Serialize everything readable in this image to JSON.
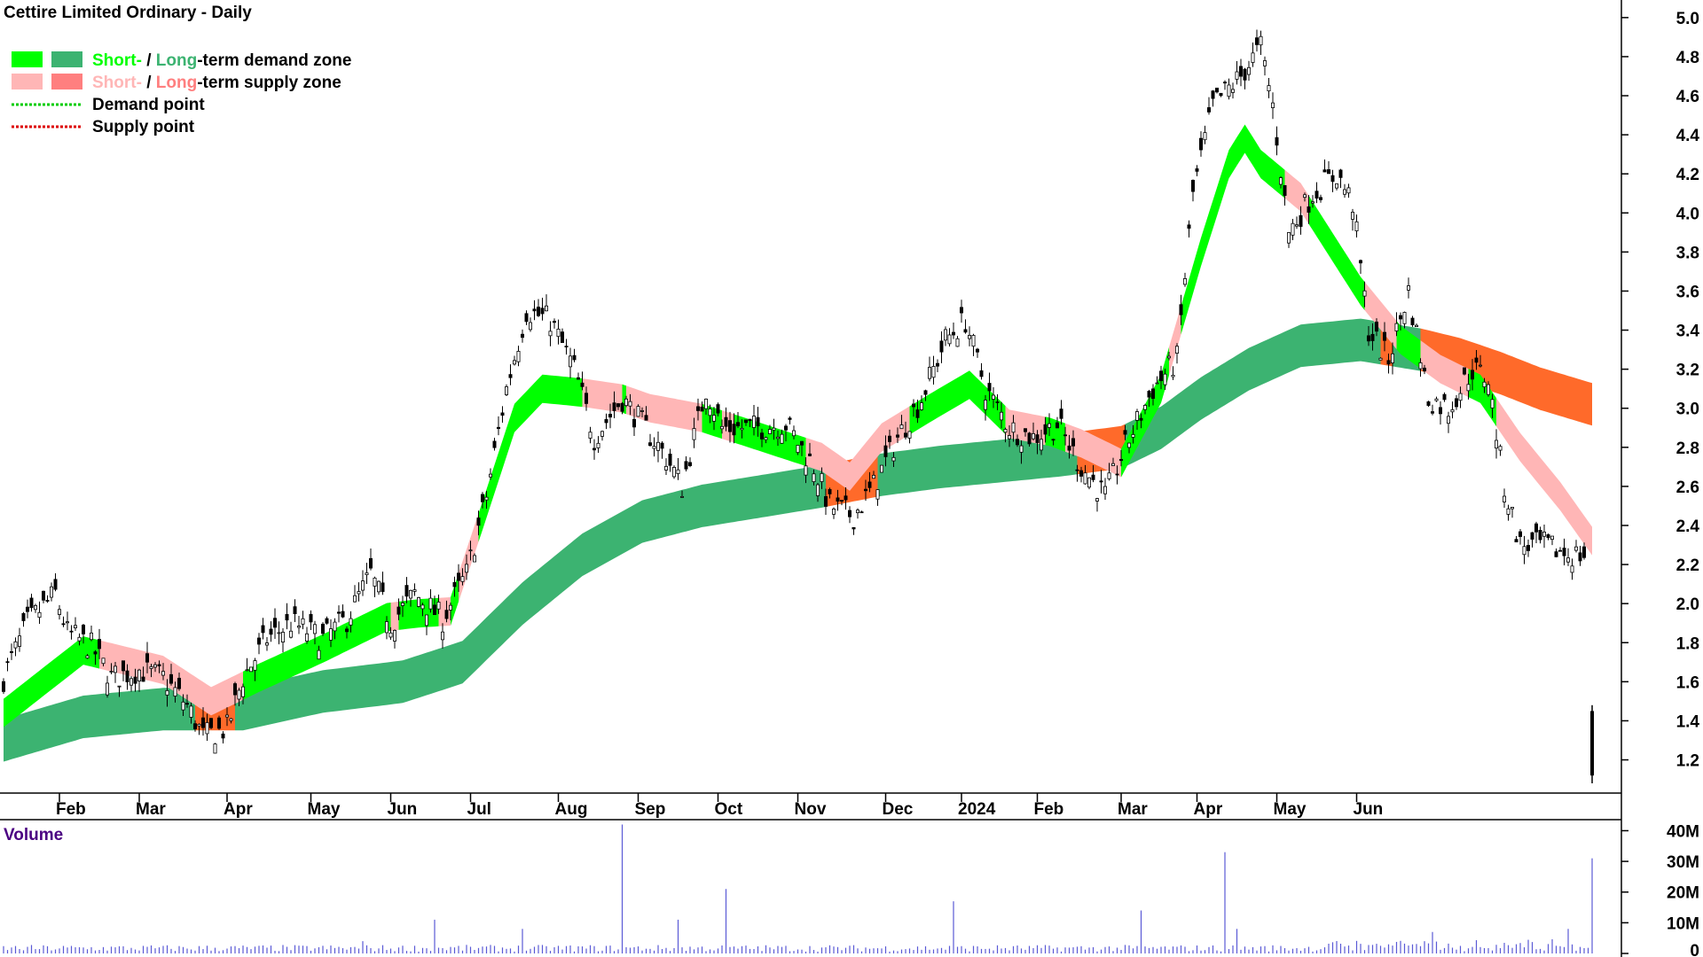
{
  "chart_data": [
    {
      "type": "candlestick",
      "title": "Cettire Limited Ordinary - Daily",
      "y_axis": {
        "ticks": [
          1.2,
          1.4,
          1.6,
          1.8,
          2.0,
          2.2,
          2.4,
          2.6,
          2.8,
          3.0,
          3.2,
          3.4,
          3.6,
          3.8,
          4.0,
          4.2,
          4.4,
          4.6,
          4.8,
          5.0
        ],
        "range": [
          1.03,
          5.09
        ],
        "position": "right"
      },
      "x_axis": {
        "labels": [
          "Feb",
          "Mar",
          "Apr",
          "May",
          "Jun",
          "Jul",
          "Aug",
          "Sep",
          "Oct",
          "Nov",
          "Dec",
          "2024",
          "Feb",
          "Mar",
          "Apr",
          "May",
          "Jun"
        ]
      },
      "legend": {
        "placement": "top-left",
        "items": [
          {
            "swatches": [
              "#00ff00",
              "#3cb371"
            ],
            "parts": [
              {
                "text": "Short-",
                "color": "#00ff00"
              },
              {
                "text": " / ",
                "color": "#000000"
              },
              {
                "text": "Long",
                "color": "#3cb371"
              },
              {
                "text": "-term demand zone",
                "color": "#000000"
              }
            ]
          },
          {
            "swatches": [
              "#ffb6b6",
              "#ff7f7f"
            ],
            "parts": [
              {
                "text": "Short-",
                "color": "#ffb6b6"
              },
              {
                "text": " / ",
                "color": "#000000"
              },
              {
                "text": "Long",
                "color": "#ff7f7f"
              },
              {
                "text": "-term supply zone",
                "color": "#000000"
              }
            ]
          },
          {
            "line": "#00cc00",
            "parts": [
              {
                "text": "Demand point",
                "color": "#000000"
              }
            ]
          },
          {
            "line": "#dd0000",
            "parts": [
              {
                "text": "Supply point",
                "color": "#000000"
              }
            ]
          }
        ]
      },
      "colors": {
        "short_demand": "#00ff00",
        "long_demand": "#3cb371",
        "short_supply": "#ffb6b6",
        "long_supply": "#ff6a2a",
        "candle": "#000000"
      },
      "price_path": [
        [
          0,
          1.62
        ],
        [
          6,
          1.9
        ],
        [
          13,
          2.05
        ],
        [
          16,
          1.85
        ],
        [
          22,
          1.78
        ],
        [
          27,
          1.62
        ],
        [
          34,
          1.66
        ],
        [
          40,
          1.62
        ],
        [
          46,
          1.48
        ],
        [
          50,
          1.32
        ],
        [
          56,
          1.36
        ],
        [
          60,
          1.62
        ],
        [
          66,
          1.82
        ],
        [
          72,
          1.9
        ],
        [
          80,
          1.82
        ],
        [
          86,
          1.92
        ],
        [
          92,
          2.15
        ],
        [
          97,
          1.9
        ],
        [
          103,
          2.05
        ],
        [
          110,
          1.92
        ],
        [
          116,
          2.15
        ],
        [
          121,
          2.55
        ],
        [
          126,
          3.1
        ],
        [
          131,
          3.5
        ],
        [
          137,
          3.45
        ],
        [
          143,
          3.2
        ],
        [
          148,
          2.85
        ],
        [
          155,
          3.05
        ],
        [
          160,
          2.92
        ],
        [
          166,
          2.75
        ],
        [
          170,
          2.6
        ],
        [
          176,
          3.1
        ],
        [
          180,
          2.9
        ],
        [
          188,
          2.9
        ],
        [
          196,
          2.92
        ],
        [
          203,
          2.7
        ],
        [
          207,
          2.5
        ],
        [
          213,
          2.45
        ],
        [
          218,
          2.6
        ],
        [
          224,
          2.85
        ],
        [
          230,
          3.05
        ],
        [
          236,
          3.35
        ],
        [
          241,
          3.45
        ],
        [
          246,
          3.1
        ],
        [
          252,
          2.9
        ],
        [
          258,
          2.85
        ],
        [
          264,
          2.92
        ],
        [
          270,
          2.7
        ],
        [
          276,
          2.55
        ],
        [
          281,
          2.8
        ],
        [
          288,
          3.1
        ],
        [
          294,
          3.25
        ],
        [
          298,
          4.1
        ],
        [
          303,
          4.55
        ],
        [
          310,
          4.7
        ],
        [
          315,
          4.85
        ],
        [
          318,
          4.55
        ],
        [
          322,
          3.9
        ],
        [
          328,
          4.1
        ],
        [
          334,
          4.2
        ],
        [
          338,
          4.05
        ],
        [
          342,
          3.4
        ],
        [
          347,
          3.25
        ],
        [
          352,
          3.6
        ],
        [
          357,
          3.05
        ],
        [
          362,
          3.0
        ],
        [
          368,
          3.2
        ],
        [
          372,
          3.15
        ],
        [
          376,
          2.6
        ],
        [
          380,
          2.3
        ],
        [
          386,
          2.3
        ],
        [
          392,
          2.25
        ],
        [
          396,
          2.25
        ],
        [
          398,
          1.2
        ]
      ],
      "ma_short": [
        [
          0,
          1.44
        ],
        [
          20,
          1.76
        ],
        [
          40,
          1.66
        ],
        [
          52,
          1.5
        ],
        [
          64,
          1.62
        ],
        [
          80,
          1.77
        ],
        [
          96,
          1.93
        ],
        [
          104,
          1.95
        ],
        [
          112,
          1.96
        ],
        [
          120,
          2.45
        ],
        [
          128,
          2.95
        ],
        [
          135,
          3.1
        ],
        [
          145,
          3.08
        ],
        [
          155,
          3.05
        ],
        [
          162,
          3.0
        ],
        [
          175,
          2.95
        ],
        [
          190,
          2.85
        ],
        [
          205,
          2.75
        ],
        [
          212,
          2.65
        ],
        [
          220,
          2.85
        ],
        [
          232,
          3.0
        ],
        [
          242,
          3.12
        ],
        [
          252,
          2.92
        ],
        [
          262,
          2.88
        ],
        [
          270,
          2.82
        ],
        [
          280,
          2.72
        ],
        [
          290,
          3.1
        ],
        [
          300,
          3.8
        ],
        [
          307,
          4.25
        ],
        [
          311,
          4.38
        ],
        [
          315,
          4.25
        ],
        [
          325,
          4.08
        ],
        [
          340,
          3.6
        ],
        [
          350,
          3.35
        ],
        [
          360,
          3.2
        ],
        [
          370,
          3.1
        ],
        [
          380,
          2.8
        ],
        [
          390,
          2.55
        ],
        [
          398,
          2.32
        ]
      ],
      "ma_long": [
        [
          0,
          1.3
        ],
        [
          20,
          1.42
        ],
        [
          40,
          1.46
        ],
        [
          60,
          1.46
        ],
        [
          80,
          1.55
        ],
        [
          100,
          1.6
        ],
        [
          115,
          1.7
        ],
        [
          130,
          2.0
        ],
        [
          145,
          2.25
        ],
        [
          160,
          2.42
        ],
        [
          175,
          2.5
        ],
        [
          190,
          2.55
        ],
        [
          205,
          2.6
        ],
        [
          220,
          2.66
        ],
        [
          235,
          2.7
        ],
        [
          250,
          2.73
        ],
        [
          265,
          2.76
        ],
        [
          280,
          2.8
        ],
        [
          290,
          2.9
        ],
        [
          300,
          3.05
        ],
        [
          312,
          3.2
        ],
        [
          325,
          3.32
        ],
        [
          340,
          3.35
        ],
        [
          355,
          3.3
        ],
        [
          365,
          3.25
        ],
        [
          375,
          3.18
        ],
        [
          385,
          3.1
        ],
        [
          398,
          3.02
        ]
      ],
      "volume_axis": {
        "ticks": [
          "0",
          "10M",
          "20M",
          "30M",
          "40M"
        ],
        "values": [
          0,
          10,
          20,
          30,
          40
        ],
        "unit": "M",
        "range": [
          0,
          41
        ]
      },
      "volume_label": "Volume",
      "volume_spikes": [
        [
          90,
          4
        ],
        [
          108,
          11
        ],
        [
          130,
          8
        ],
        [
          155,
          42
        ],
        [
          169,
          11
        ],
        [
          181,
          21
        ],
        [
          238,
          17
        ],
        [
          285,
          14
        ],
        [
          306,
          33
        ],
        [
          309,
          8
        ],
        [
          358,
          7
        ],
        [
          392,
          8
        ],
        [
          398,
          31
        ]
      ]
    }
  ]
}
